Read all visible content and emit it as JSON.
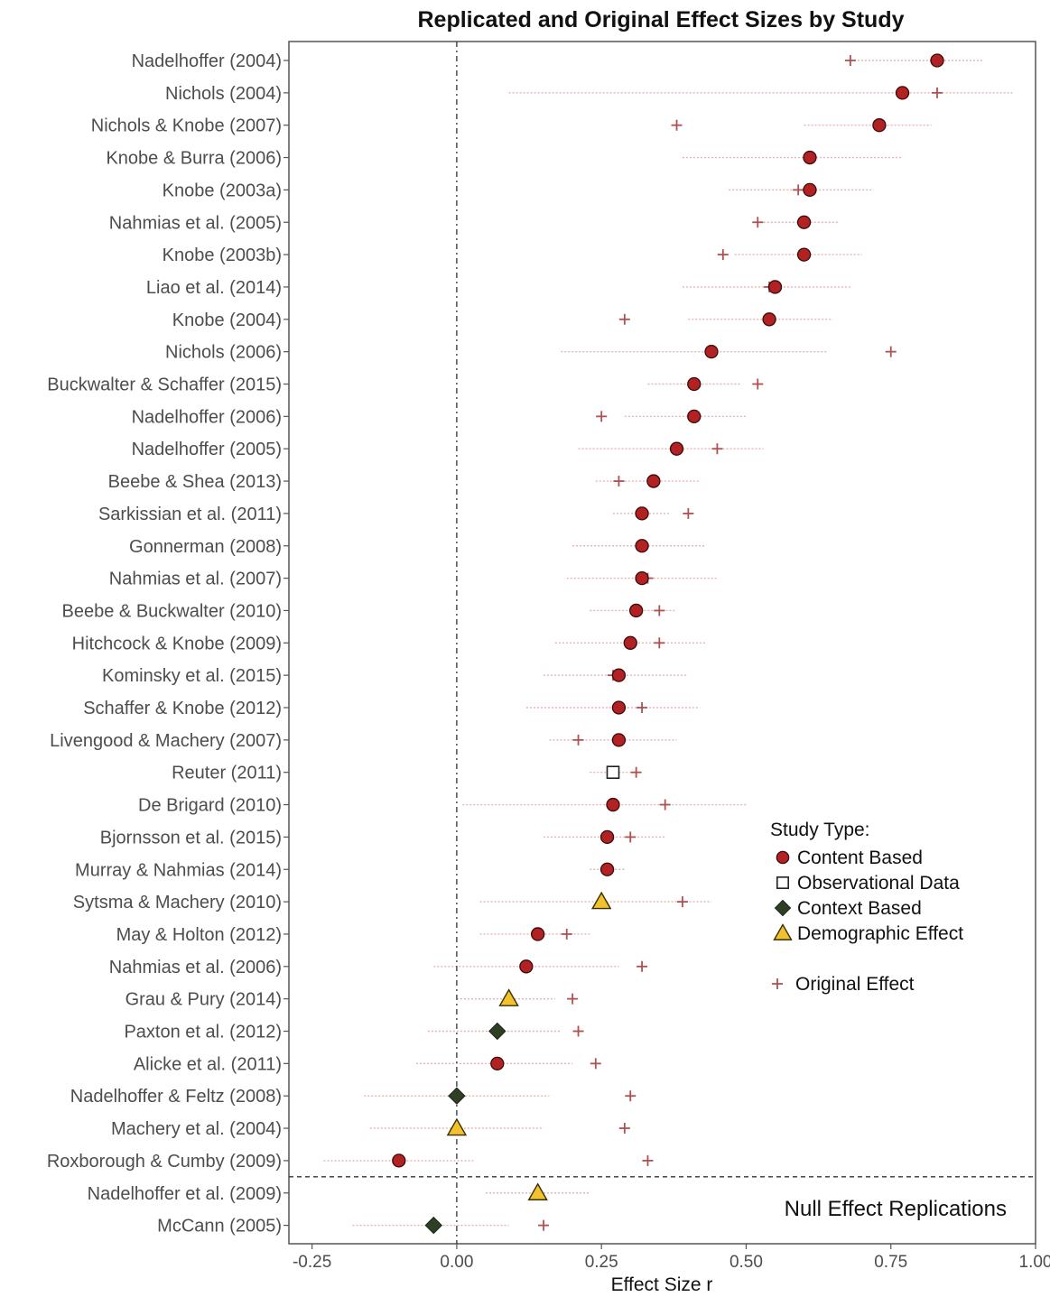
{
  "chart_data": {
    "type": "scatter",
    "title": "Replicated and Original Effect Sizes by Study",
    "xlabel": "Effect Size r",
    "xlim": [
      -0.29,
      1.0
    ],
    "xticks": [
      -0.25,
      0.0,
      0.25,
      0.5,
      0.75,
      1.0
    ],
    "xtick_labels": [
      "-0.25",
      "0.00",
      "0.25",
      "0.50",
      "0.75",
      "1.00"
    ],
    "reference_line_x": 0,
    "legend": {
      "title": "Study Type:",
      "placement": "right",
      "entries": [
        {
          "type": "Content Based",
          "label": "Content Based",
          "shape": "circle",
          "color": "#b22222"
        },
        {
          "type": "Observational Data",
          "label": "Observational Data",
          "shape": "square",
          "color": "#ffffff"
        },
        {
          "type": "Context Based",
          "label": "Context Based",
          "shape": "diamond",
          "color": "#2f3f24"
        },
        {
          "type": "Demographic Effect",
          "label": "Demographic Effect",
          "shape": "triangle",
          "color": "#f2c12e"
        }
      ],
      "original_label": "Original Effect",
      "original_color": "#b05050"
    },
    "null_section_label": "Null Effect Replications",
    "studies": [
      {
        "study": "Nadelhoffer (2004)",
        "type": "Content Based",
        "rep": 0.83,
        "lo": 0.68,
        "hi": 0.91,
        "orig": 0.68
      },
      {
        "study": "Nichols (2004)",
        "type": "Content Based",
        "rep": 0.77,
        "lo": 0.09,
        "hi": 0.96,
        "orig": 0.83
      },
      {
        "study": "Nichols & Knobe (2007)",
        "type": "Content Based",
        "rep": 0.73,
        "lo": 0.6,
        "hi": 0.82,
        "orig": 0.38
      },
      {
        "study": "Knobe & Burra (2006)",
        "type": "Content Based",
        "rep": 0.61,
        "lo": 0.39,
        "hi": 0.77,
        "orig": null
      },
      {
        "study": "Knobe (2003a)",
        "type": "Content Based",
        "rep": 0.61,
        "lo": 0.47,
        "hi": 0.72,
        "orig": 0.59
      },
      {
        "study": "Nahmias et al. (2005)",
        "type": "Content Based",
        "rep": 0.6,
        "lo": 0.53,
        "hi": 0.66,
        "orig": 0.52
      },
      {
        "study": "Knobe (2003b)",
        "type": "Content Based",
        "rep": 0.6,
        "lo": 0.48,
        "hi": 0.7,
        "orig": 0.46
      },
      {
        "study": "Liao et al. (2014)",
        "type": "Content Based",
        "rep": 0.55,
        "lo": 0.39,
        "hi": 0.68,
        "orig": 0.54
      },
      {
        "study": "Knobe (2004)",
        "type": "Content Based",
        "rep": 0.54,
        "lo": 0.4,
        "hi": 0.65,
        "orig": 0.29
      },
      {
        "study": "Nichols (2006)",
        "type": "Content Based",
        "rep": 0.44,
        "lo": 0.18,
        "hi": 0.64,
        "orig": 0.75
      },
      {
        "study": "Buckwalter & Schaffer (2015)",
        "type": "Content Based",
        "rep": 0.41,
        "lo": 0.33,
        "hi": 0.49,
        "orig": 0.52
      },
      {
        "study": "Nadelhoffer (2006)",
        "type": "Content Based",
        "rep": 0.41,
        "lo": 0.29,
        "hi": 0.5,
        "orig": 0.25
      },
      {
        "study": "Nadelhoffer (2005)",
        "type": "Content Based",
        "rep": 0.38,
        "lo": 0.21,
        "hi": 0.53,
        "orig": 0.45
      },
      {
        "study": "Beebe & Shea (2013)",
        "type": "Content Based",
        "rep": 0.34,
        "lo": 0.24,
        "hi": 0.42,
        "orig": 0.28
      },
      {
        "study": "Sarkissian et al. (2011)",
        "type": "Content Based",
        "rep": 0.32,
        "lo": 0.27,
        "hi": 0.37,
        "orig": 0.4
      },
      {
        "study": "Gonnerman (2008)",
        "type": "Content Based",
        "rep": 0.32,
        "lo": 0.2,
        "hi": 0.43,
        "orig": null
      },
      {
        "study": "Nahmias et al. (2007)",
        "type": "Content Based",
        "rep": 0.32,
        "lo": 0.19,
        "hi": 0.45,
        "orig": 0.33
      },
      {
        "study": "Beebe & Buckwalter (2010)",
        "type": "Content Based",
        "rep": 0.31,
        "lo": 0.23,
        "hi": 0.38,
        "orig": 0.35
      },
      {
        "study": "Hitchcock & Knobe (2009)",
        "type": "Content Based",
        "rep": 0.3,
        "lo": 0.17,
        "hi": 0.43,
        "orig": 0.35
      },
      {
        "study": "Kominsky et al. (2015)",
        "type": "Content Based",
        "rep": 0.28,
        "lo": 0.15,
        "hi": 0.4,
        "orig": 0.27
      },
      {
        "study": "Schaffer & Knobe (2012)",
        "type": "Content Based",
        "rep": 0.28,
        "lo": 0.12,
        "hi": 0.42,
        "orig": 0.32
      },
      {
        "study": "Livengood & Machery (2007)",
        "type": "Content Based",
        "rep": 0.28,
        "lo": 0.16,
        "hi": 0.38,
        "orig": 0.21
      },
      {
        "study": "Reuter (2011)",
        "type": "Observational Data",
        "rep": 0.27,
        "lo": 0.23,
        "hi": 0.31,
        "orig": 0.31
      },
      {
        "study": "De Brigard (2010)",
        "type": "Content Based",
        "rep": 0.27,
        "lo": 0.01,
        "hi": 0.5,
        "orig": 0.36
      },
      {
        "study": "Bjornsson et al. (2015)",
        "type": "Content Based",
        "rep": 0.26,
        "lo": 0.15,
        "hi": 0.36,
        "orig": 0.3
      },
      {
        "study": "Murray & Nahmias (2014)",
        "type": "Content Based",
        "rep": 0.26,
        "lo": 0.23,
        "hi": 0.29,
        "orig": 0.26
      },
      {
        "study": "Sytsma & Machery (2010)",
        "type": "Demographic Effect",
        "rep": 0.25,
        "lo": 0.04,
        "hi": 0.44,
        "orig": 0.39
      },
      {
        "study": "May & Holton (2012)",
        "type": "Content Based",
        "rep": 0.14,
        "lo": 0.04,
        "hi": 0.23,
        "orig": 0.19
      },
      {
        "study": "Nahmias et al. (2006)",
        "type": "Content Based",
        "rep": 0.12,
        "lo": -0.04,
        "hi": 0.28,
        "orig": 0.32
      },
      {
        "study": "Grau & Pury (2014)",
        "type": "Demographic Effect",
        "rep": 0.09,
        "lo": 0.0,
        "hi": 0.17,
        "orig": 0.2
      },
      {
        "study": "Paxton et al. (2012)",
        "type": "Context Based",
        "rep": 0.07,
        "lo": -0.05,
        "hi": 0.18,
        "orig": 0.21
      },
      {
        "study": "Alicke et al. (2011)",
        "type": "Content Based",
        "rep": 0.07,
        "lo": -0.07,
        "hi": 0.2,
        "orig": 0.24
      },
      {
        "study": "Nadelhoffer & Feltz (2008)",
        "type": "Context Based",
        "rep": 0.0,
        "lo": -0.16,
        "hi": 0.16,
        "orig": 0.3
      },
      {
        "study": "Machery et al. (2004)",
        "type": "Demographic Effect",
        "rep": 0.0,
        "lo": -0.15,
        "hi": 0.15,
        "orig": 0.29
      },
      {
        "study": "Roxborough & Cumby (2009)",
        "type": "Content Based",
        "rep": -0.1,
        "lo": -0.23,
        "hi": 0.03,
        "orig": 0.33
      },
      {
        "study": "Nadelhoffer et al. (2009)",
        "type": "Demographic Effect",
        "rep": 0.14,
        "lo": 0.05,
        "hi": 0.23,
        "orig": null
      },
      {
        "study": "McCann (2005)",
        "type": "Context Based",
        "rep": -0.04,
        "lo": -0.18,
        "hi": 0.09,
        "orig": 0.15
      }
    ]
  }
}
